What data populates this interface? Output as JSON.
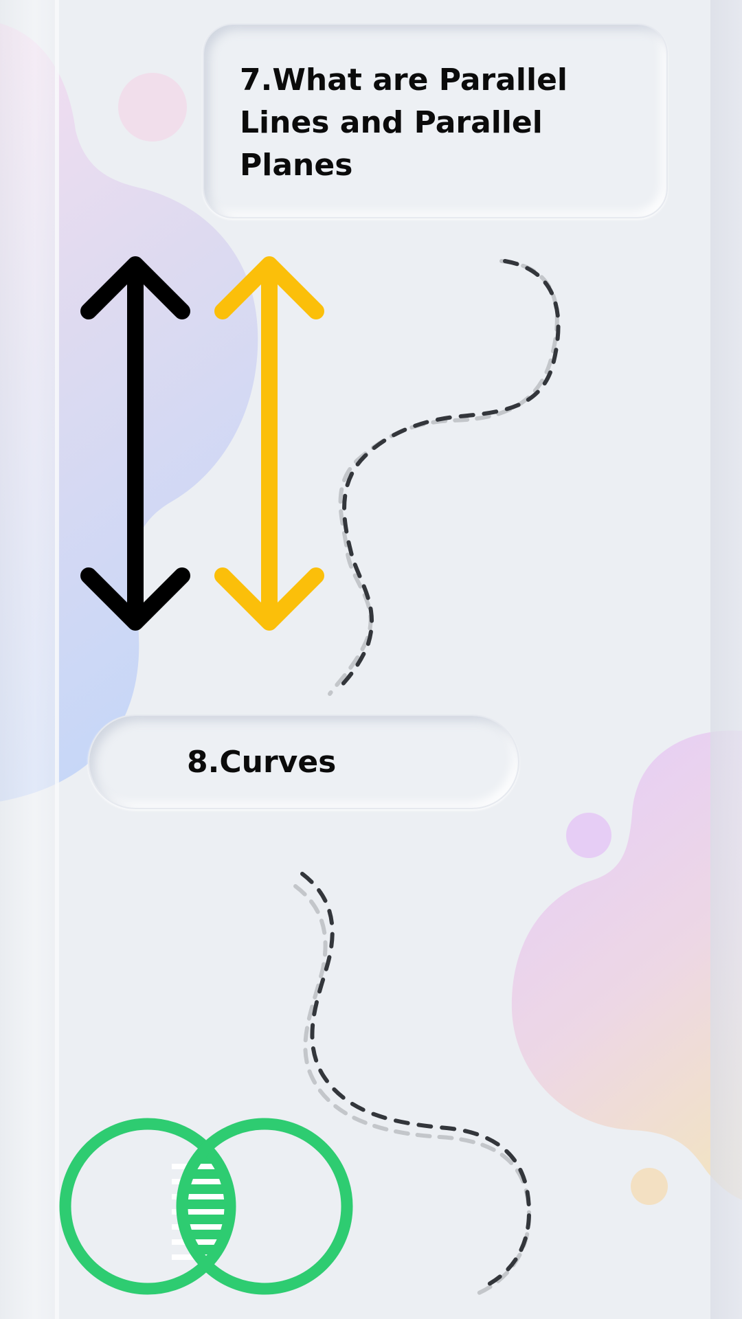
{
  "sections": [
    {
      "title": "7.What are Parallel Lines and Parallel Planes"
    },
    {
      "title": "8.Curves"
    }
  ],
  "illustrations": {
    "parallel_arrows": {
      "left_arrow_color": "#000000",
      "right_arrow_color": "#fbbf0a"
    },
    "venn_circles_color": "#2ecc71",
    "dashed_curve_dark": "#33363b",
    "dashed_curve_light": "#c3c6ca"
  },
  "colors": {
    "background": "#eceff3",
    "blob_pink": "#f3d6ea",
    "blob_blue": "#bcd0f4",
    "blob_purple": "#e2c8f4",
    "blob_peach": "#f1dcc0"
  }
}
